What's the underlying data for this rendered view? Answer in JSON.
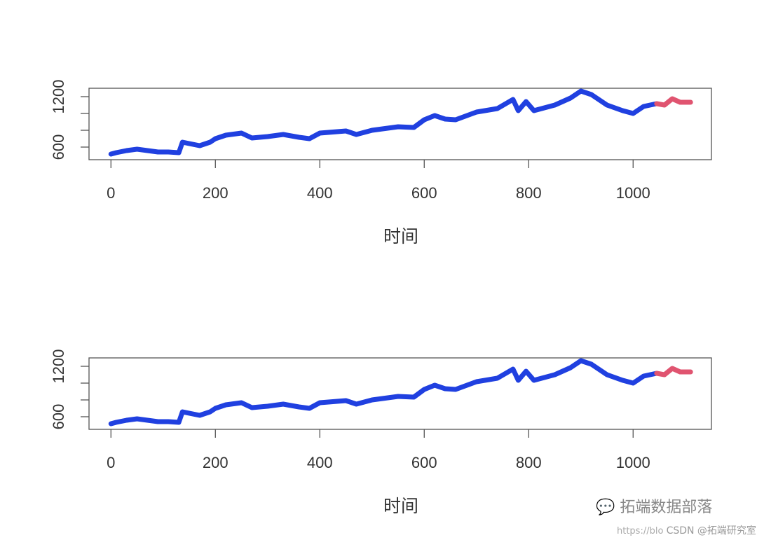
{
  "chart_data": [
    {
      "type": "line",
      "xlabel": "时间",
      "ylabel": "",
      "xlim": [
        -42,
        1150
      ],
      "ylim": [
        450,
        1300
      ],
      "xticks": [
        0,
        200,
        400,
        600,
        800,
        1000
      ],
      "yticks": [
        600,
        800,
        1000,
        1200
      ],
      "ytick_labels": [
        "600",
        "",
        "",
        "1200"
      ],
      "grid": false,
      "series": [
        {
          "color": "#2040E0",
          "x": [
            0,
            10,
            30,
            50,
            70,
            90,
            110,
            130,
            137,
            150,
            170,
            190,
            200,
            220,
            250,
            270,
            300,
            330,
            360,
            380,
            400,
            450,
            470,
            500,
            550,
            580,
            600,
            620,
            640,
            660,
            700,
            740,
            770,
            780,
            795,
            810,
            850,
            880,
            900,
            920,
            950,
            980,
            1000,
            1020,
            1045
          ],
          "y": [
            517,
            533,
            558,
            575,
            558,
            542,
            542,
            533,
            658,
            642,
            617,
            658,
            700,
            742,
            767,
            708,
            725,
            750,
            717,
            700,
            767,
            792,
            750,
            800,
            842,
            833,
            925,
            975,
            933,
            925,
            1017,
            1058,
            1167,
            1033,
            1142,
            1033,
            1100,
            1183,
            1267,
            1225,
            1100,
            1033,
            1000,
            1083,
            1117
          ]
        },
        {
          "color": "#E05470",
          "x": [
            1045,
            1060,
            1075,
            1090,
            1110
          ],
          "y": [
            1117,
            1100,
            1175,
            1133,
            1133
          ]
        }
      ]
    },
    {
      "type": "line",
      "xlabel": "时间",
      "ylabel": "",
      "xlim": [
        -42,
        1150
      ],
      "ylim": [
        450,
        1300
      ],
      "xticks": [
        0,
        200,
        400,
        600,
        800,
        1000
      ],
      "yticks": [
        600,
        800,
        1000,
        1200
      ],
      "ytick_labels": [
        "600",
        "",
        "",
        "1200"
      ],
      "grid": false,
      "series": [
        {
          "color": "#2040E0",
          "x": [
            0,
            10,
            30,
            50,
            70,
            90,
            110,
            130,
            137,
            150,
            170,
            190,
            200,
            220,
            250,
            270,
            300,
            330,
            360,
            380,
            400,
            450,
            470,
            500,
            550,
            580,
            600,
            620,
            640,
            660,
            700,
            740,
            770,
            780,
            795,
            810,
            850,
            880,
            900,
            920,
            950,
            980,
            1000,
            1020,
            1045
          ],
          "y": [
            517,
            533,
            558,
            575,
            558,
            542,
            542,
            533,
            658,
            642,
            617,
            658,
            700,
            742,
            767,
            708,
            725,
            750,
            717,
            700,
            767,
            792,
            750,
            800,
            842,
            833,
            925,
            975,
            933,
            925,
            1017,
            1058,
            1167,
            1033,
            1142,
            1033,
            1100,
            1183,
            1267,
            1225,
            1100,
            1033,
            1000,
            1083,
            1117
          ]
        },
        {
          "color": "#E05470",
          "x": [
            1045,
            1060,
            1075,
            1090,
            1110
          ],
          "y": [
            1117,
            1100,
            1175,
            1133,
            1133
          ]
        }
      ]
    }
  ],
  "watermark": {
    "brand": "拓端数据部落",
    "url_fragment": "https://blo",
    "csdn": "CSDN @拓端研究室"
  }
}
